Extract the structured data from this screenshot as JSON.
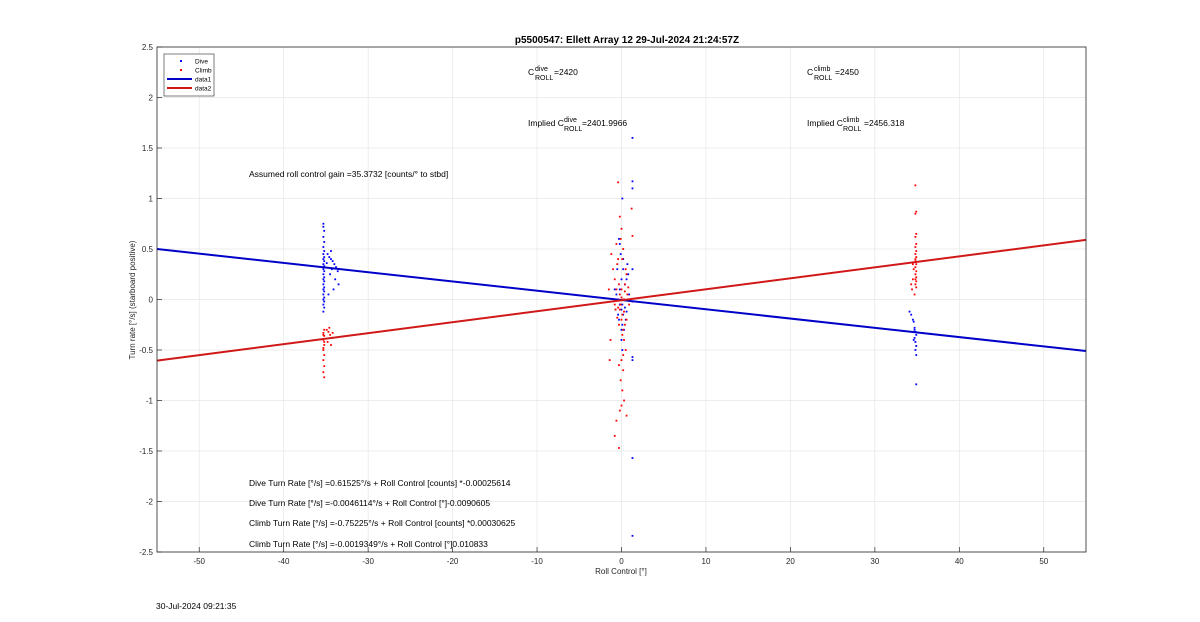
{
  "chart_data": {
    "type": "scatter",
    "title": "p5500547: Ellett Array 12 29-Jul-2024 21:24:57Z",
    "xlabel": "Roll Control [°]",
    "ylabel": "Turn rate [°/s] (starboard positive)",
    "xlim": [
      -55,
      55
    ],
    "ylim": [
      -2.5,
      2.5
    ],
    "xticks": [
      -50,
      -40,
      -30,
      -20,
      -10,
      0,
      10,
      20,
      30,
      40,
      50
    ],
    "yticks": [
      -2.5,
      -2,
      -1.5,
      -1,
      -0.5,
      0,
      0.5,
      1,
      1.5,
      2,
      2.5
    ],
    "grid": true,
    "legend_position": "top-left",
    "series": [
      {
        "name": "Dive",
        "kind": "points",
        "color": "#0000ff",
        "points": [
          [
            -35.3,
            0.75
          ],
          [
            -35.3,
            0.72
          ],
          [
            -35.2,
            0.68
          ],
          [
            -35.3,
            0.62
          ],
          [
            -35.2,
            0.57
          ],
          [
            -35.3,
            0.52
          ],
          [
            -35.2,
            0.48
          ],
          [
            -35.3,
            0.45
          ],
          [
            -35.2,
            0.42
          ],
          [
            -35.3,
            0.4
          ],
          [
            -35.2,
            0.38
          ],
          [
            -35.3,
            0.35
          ],
          [
            -35.2,
            0.33
          ],
          [
            -35.3,
            0.3
          ],
          [
            -35.2,
            0.28
          ],
          [
            -35.3,
            0.25
          ],
          [
            -35.2,
            0.22
          ],
          [
            -35.3,
            0.2
          ],
          [
            -35.2,
            0.18
          ],
          [
            -35.3,
            0.15
          ],
          [
            -35.2,
            0.12
          ],
          [
            -35.3,
            0.1
          ],
          [
            -35.2,
            0.08
          ],
          [
            -35.3,
            0.05
          ],
          [
            -35.2,
            0.02
          ],
          [
            -35.3,
            0.0
          ],
          [
            -35.2,
            -0.02
          ],
          [
            -35.3,
            -0.05
          ],
          [
            -35.2,
            -0.08
          ],
          [
            -35.3,
            -0.12
          ],
          [
            -34.8,
            0.45
          ],
          [
            -34.6,
            0.42
          ],
          [
            -34.4,
            0.4
          ],
          [
            -34.2,
            0.38
          ],
          [
            -34.0,
            0.35
          ],
          [
            -33.8,
            0.32
          ],
          [
            -33.6,
            0.28
          ],
          [
            -34.5,
            0.25
          ],
          [
            -34.3,
            0.3
          ],
          [
            -33.9,
            0.2
          ],
          [
            -33.5,
            0.15
          ],
          [
            -34.1,
            0.1
          ],
          [
            -34.7,
            0.05
          ],
          [
            -34.9,
            0.36
          ],
          [
            -34.4,
            0.48
          ],
          [
            -0.8,
            0.1
          ],
          [
            -0.6,
            0.05
          ],
          [
            -0.4,
            0.0
          ],
          [
            -0.2,
            -0.05
          ],
          [
            0.0,
            -0.1
          ],
          [
            0.2,
            -0.15
          ],
          [
            0.4,
            0.15
          ],
          [
            0.6,
            0.2
          ],
          [
            0.8,
            0.25
          ],
          [
            -0.5,
            0.3
          ],
          [
            -0.3,
            -0.2
          ],
          [
            0.1,
            -0.25
          ],
          [
            0.3,
            -0.3
          ],
          [
            0.5,
            -0.2
          ],
          [
            0.7,
            0.35
          ],
          [
            0.2,
            0.4
          ],
          [
            -0.1,
            0.45
          ],
          [
            -0.7,
            -0.1
          ],
          [
            0.9,
            0.05
          ],
          [
            0.0,
            0.2
          ],
          [
            0.1,
            -0.05
          ],
          [
            -0.2,
            0.1
          ],
          [
            0.3,
            0.0
          ],
          [
            -0.4,
            -0.15
          ],
          [
            0.6,
            -0.12
          ],
          [
            0.4,
            -0.08
          ],
          [
            0.0,
            -0.3
          ],
          [
            0.2,
            0.3
          ],
          [
            -0.3,
            0.6
          ],
          [
            -0.2,
            0.55
          ],
          [
            0.1,
            -0.5
          ],
          [
            0.0,
            -0.4
          ],
          [
            1.3,
            1.6
          ],
          [
            1.3,
            1.17
          ],
          [
            1.3,
            1.1
          ],
          [
            1.3,
            0.3
          ],
          [
            1.3,
            -0.02
          ],
          [
            1.3,
            -0.57
          ],
          [
            1.3,
            -0.6
          ],
          [
            1.3,
            -1.57
          ],
          [
            1.3,
            -2.34
          ],
          [
            0.1,
            1.0
          ],
          [
            34.1,
            -0.12
          ],
          [
            34.3,
            -0.15
          ],
          [
            34.5,
            -0.2
          ],
          [
            34.6,
            -0.22
          ],
          [
            34.7,
            -0.28
          ],
          [
            34.8,
            -0.32
          ],
          [
            34.9,
            -0.35
          ],
          [
            34.7,
            -0.38
          ],
          [
            34.8,
            -0.42
          ],
          [
            34.9,
            -0.46
          ],
          [
            34.8,
            -0.5
          ],
          [
            34.9,
            -0.55
          ],
          [
            34.7,
            -0.3
          ],
          [
            34.9,
            -0.84
          ],
          [
            34.6,
            -0.4
          ]
        ]
      },
      {
        "name": "Climb",
        "kind": "points",
        "color": "#ff0000",
        "points": [
          [
            -35.2,
            -0.3
          ],
          [
            -35.3,
            -0.33
          ],
          [
            -35.2,
            -0.36
          ],
          [
            -35.3,
            -0.4
          ],
          [
            -35.2,
            -0.45
          ],
          [
            -35.3,
            -0.5
          ],
          [
            -35.2,
            -0.55
          ],
          [
            -35.3,
            -0.6
          ],
          [
            -35.2,
            -0.66
          ],
          [
            -35.3,
            -0.72
          ],
          [
            -35.2,
            -0.77
          ],
          [
            -35.3,
            -0.35
          ],
          [
            -35.2,
            -0.42
          ],
          [
            -35.3,
            -0.48
          ],
          [
            -34.9,
            -0.3
          ],
          [
            -34.7,
            -0.32
          ],
          [
            -34.5,
            -0.35
          ],
          [
            -34.3,
            -0.38
          ],
          [
            -34.8,
            -0.42
          ],
          [
            -34.6,
            -0.28
          ],
          [
            -34.4,
            -0.45
          ],
          [
            -34.2,
            -0.33
          ],
          [
            -1.2,
            0.45
          ],
          [
            -1.0,
            0.3
          ],
          [
            -0.8,
            0.2
          ],
          [
            -0.6,
            0.1
          ],
          [
            -0.4,
            0.0
          ],
          [
            -0.2,
            -0.1
          ],
          [
            0.0,
            -0.2
          ],
          [
            0.2,
            -0.3
          ],
          [
            0.4,
            0.15
          ],
          [
            0.6,
            0.25
          ],
          [
            -0.5,
            0.35
          ],
          [
            -0.3,
            -0.25
          ],
          [
            0.1,
            -0.35
          ],
          [
            0.3,
            -0.4
          ],
          [
            0.5,
            -0.5
          ],
          [
            0.7,
            0.05
          ],
          [
            0.2,
            0.5
          ],
          [
            -0.1,
            0.6
          ],
          [
            -0.7,
            -0.1
          ],
          [
            0.9,
            -0.05
          ],
          [
            0.0,
            0.1
          ],
          [
            -0.2,
            0.05
          ],
          [
            0.1,
            -0.15
          ],
          [
            0.3,
            0.0
          ],
          [
            -0.4,
            -0.08
          ],
          [
            0.4,
            0.08
          ],
          [
            0.0,
            -0.6
          ],
          [
            0.2,
            -0.7
          ],
          [
            -0.1,
            -0.8
          ],
          [
            0.1,
            -0.9
          ],
          [
            0.3,
            -1.0
          ],
          [
            0.0,
            -1.05
          ],
          [
            -0.2,
            -1.1
          ],
          [
            0.2,
            -0.55
          ],
          [
            -0.3,
            -0.65
          ],
          [
            -0.4,
            0.4
          ],
          [
            0.1,
            0.4
          ],
          [
            -0.6,
            0.55
          ],
          [
            0.5,
            0.3
          ],
          [
            -0.2,
            0.82
          ],
          [
            0.0,
            0.7
          ],
          [
            0.4,
            -0.25
          ],
          [
            -0.8,
            -0.05
          ],
          [
            0.8,
            0.12
          ],
          [
            -0.1,
            -0.05
          ],
          [
            0.2,
            0.0
          ],
          [
            0.0,
            0.02
          ],
          [
            -0.3,
            0.15
          ],
          [
            0.3,
            -0.12
          ],
          [
            0.6,
            -0.2
          ],
          [
            -0.5,
            -0.18
          ],
          [
            -0.4,
            1.16
          ],
          [
            -0.6,
            -1.2
          ],
          [
            -0.8,
            -1.35
          ],
          [
            -0.3,
            -1.47
          ],
          [
            1.3,
            0.63
          ],
          [
            1.2,
            0.9
          ],
          [
            -1.3,
            -0.4
          ],
          [
            -1.5,
            0.1
          ],
          [
            -1.4,
            -0.6
          ],
          [
            0.6,
            -1.15
          ],
          [
            34.8,
            1.13
          ],
          [
            34.9,
            0.87
          ],
          [
            34.8,
            0.85
          ],
          [
            34.9,
            0.65
          ],
          [
            34.8,
            0.62
          ],
          [
            34.9,
            0.55
          ],
          [
            34.8,
            0.52
          ],
          [
            34.9,
            0.48
          ],
          [
            34.8,
            0.45
          ],
          [
            34.9,
            0.42
          ],
          [
            34.8,
            0.38
          ],
          [
            34.9,
            0.35
          ],
          [
            34.8,
            0.32
          ],
          [
            34.9,
            0.28
          ],
          [
            34.8,
            0.25
          ],
          [
            34.9,
            0.22
          ],
          [
            34.8,
            0.2
          ],
          [
            34.9,
            0.18
          ],
          [
            34.8,
            0.15
          ],
          [
            34.9,
            0.12
          ],
          [
            34.6,
            0.3
          ],
          [
            34.5,
            0.35
          ],
          [
            34.4,
            0.1
          ],
          [
            34.7,
            0.05
          ],
          [
            34.5,
            0.2
          ],
          [
            34.3,
            0.15
          ],
          [
            34.8,
            0.4
          ]
        ]
      },
      {
        "name": "data1",
        "kind": "line",
        "color": "#0000c8",
        "x": [
          -55,
          55
        ],
        "y": [
          0.5,
          -0.51
        ]
      },
      {
        "name": "data2",
        "kind": "line",
        "color": "#d01818",
        "x": [
          -55,
          55
        ],
        "y": [
          -0.605,
          0.59
        ]
      }
    ],
    "annotations": {
      "c_dive_base": "C",
      "c_dive_sup": "dive",
      "c_dive_sub": "ROLL",
      "c_dive_val": " =2420",
      "c_climb_base": "C",
      "c_climb_sup": "climb",
      "c_climb_sub": "ROLL",
      "c_climb_val": " =2450",
      "implied_dive_prefix": "Implied C",
      "implied_dive_sup": "dive",
      "implied_dive_sub": "ROLL",
      "implied_dive_val": " =2401.9966",
      "implied_climb_prefix": "Implied C",
      "implied_climb_sup": "climb",
      "implied_climb_sub": "ROLL",
      "implied_climb_val": "=2456.318",
      "gain": "Assumed roll control gain =35.3732 [counts/° to stbd]",
      "eq1": "Dive Turn Rate [°/s] =0.61525°/s + Roll Control [counts] *-0.00025614",
      "eq2": "Dive Turn Rate [°/s] =-0.0046114°/s + Roll Control [°]-0.0090605",
      "eq3": "Climb Turn Rate [°/s] =-0.75225°/s + Roll Control [counts] *0.00030625",
      "eq4": "Climb Turn Rate [°/s] =-0.0019349°/s + Roll Control [°]0.010833"
    },
    "footer_timestamp": "30-Jul-2024 09:21:35"
  }
}
